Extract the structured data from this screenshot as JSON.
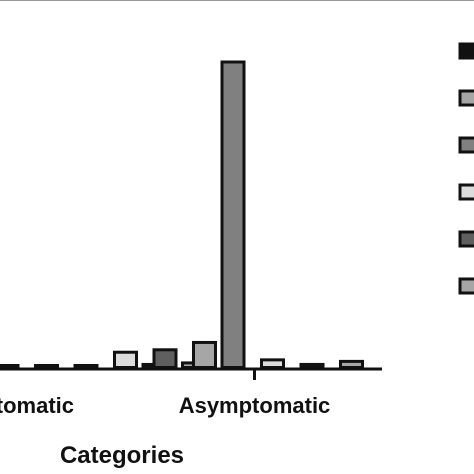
{
  "chart_data": {
    "type": "bar",
    "xlabel": "Categories",
    "categories": [
      "Symptomatic",
      "Asymptomatic"
    ],
    "category_display": [
      "ptomatic",
      "Asymptomatic"
    ],
    "ylim": [
      0,
      100
    ],
    "legend_position": "right",
    "series": [
      {
        "fill": "#111111",
        "values": [
          0.5,
          1.0
        ]
      },
      {
        "fill": "#a6a6a6",
        "values": [
          0.5,
          1.5
        ]
      },
      {
        "fill": "#808080",
        "values": [
          0.6,
          100.0
        ]
      },
      {
        "fill": "#dcdcdc",
        "values": [
          5.0,
          2.5
        ]
      },
      {
        "fill": "#5f5f5f",
        "values": [
          5.8,
          1.0
        ]
      },
      {
        "fill": "#a6a6a6",
        "values": [
          8.2,
          2.0
        ]
      }
    ]
  }
}
